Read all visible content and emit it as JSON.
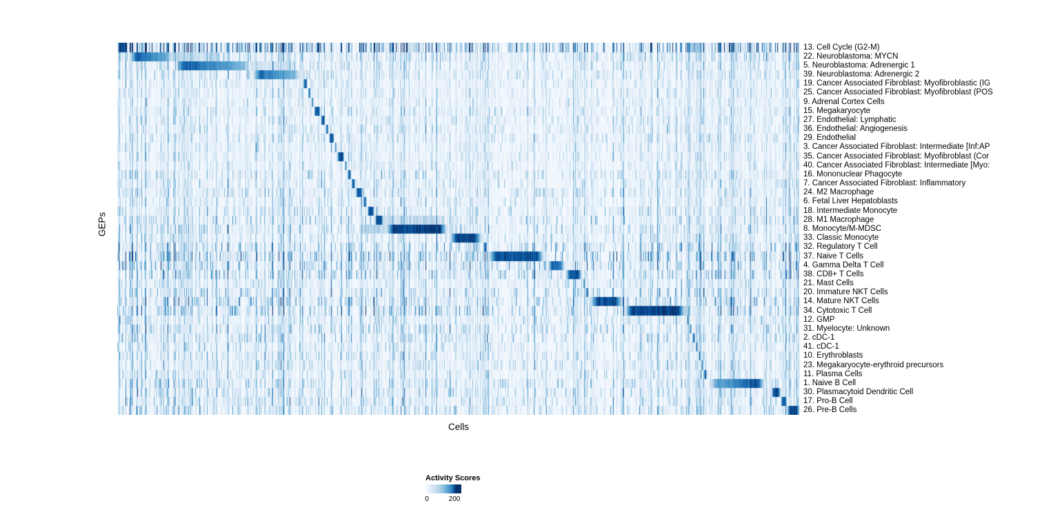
{
  "figure": {
    "background": "#ffffff"
  },
  "chart_data": {
    "type": "heatmap",
    "xlabel": "Cells",
    "ylabel": "GEPs",
    "legend": {
      "title": "Activity Scores",
      "position": "bottom",
      "ticks": [
        "0",
        "200"
      ]
    },
    "value_range": [
      0,
      250
    ],
    "n_cells": 990,
    "n_rows": 41,
    "colormap": {
      "name": "Blues",
      "stops": [
        "#f7fbff",
        "#deebf7",
        "#c6dbef",
        "#9ecae1",
        "#6baed6",
        "#4292c6",
        "#2171b5",
        "#08519c",
        "#08306b"
      ]
    },
    "rows": [
      {
        "label": "13. Cell Cycle (G2-M)",
        "block": [
          0.0,
          0.016
        ],
        "value": 240,
        "noise": 3.0
      },
      {
        "label": "22. Neuroblastoma: MYCN",
        "block": [
          0.016,
          0.085
        ],
        "value": 245,
        "noise": 1.2,
        "grad": "left",
        "extra": [
          [
            0.085,
            0.15,
            75
          ]
        ]
      },
      {
        "label": "5. Neuroblastoma: Adrenergic 1",
        "block": [
          0.085,
          0.197
        ],
        "value": 240,
        "noise": 1.0,
        "grad": "left",
        "extra": [
          [
            0.197,
            0.26,
            55
          ]
        ]
      },
      {
        "label": "39. Neuroblastoma: Adrenergic 2",
        "block": [
          0.197,
          0.272
        ],
        "value": 225,
        "noise": 1.0,
        "grad": "left"
      },
      {
        "label": "19. Cancer Associated Fibroblast: Myofibroblastic (IG",
        "block": [
          0.272,
          0.279
        ],
        "value": 215,
        "noise": 0.8
      },
      {
        "label": "25. Cancer Associated Fibroblast: Myofibroblast (POS",
        "block": [
          0.279,
          0.284
        ],
        "value": 205,
        "noise": 0.8
      },
      {
        "label": "9. Adrenal Cortex Cells",
        "block": [
          0.284,
          0.288
        ],
        "value": 200,
        "noise": 0.8
      },
      {
        "label": "15. Megakaryocyte",
        "block": [
          0.288,
          0.298
        ],
        "value": 235,
        "noise": 0.9
      },
      {
        "label": "27. Endothelial: Lymphatic",
        "block": [
          0.298,
          0.305
        ],
        "value": 225,
        "noise": 0.9
      },
      {
        "label": "36. Endothelial: Angiogenesis",
        "block": [
          0.305,
          0.31
        ],
        "value": 215,
        "noise": 0.9
      },
      {
        "label": "29. Endothelial",
        "block": [
          0.31,
          0.318
        ],
        "value": 230,
        "noise": 0.9
      },
      {
        "label": "3. Cancer Associated Fibroblast: Intermediate [Inf:AP",
        "block": [
          0.318,
          0.322
        ],
        "value": 205,
        "noise": 0.8
      },
      {
        "label": "35. Cancer Associated Fibroblast: Myofibroblast (Cor",
        "block": [
          0.322,
          0.333
        ],
        "value": 235,
        "noise": 0.8
      },
      {
        "label": "40. Cancer Associated Fibroblast: Intermediate [Myo:",
        "block": [
          0.333,
          0.337
        ],
        "value": 205,
        "noise": 0.8
      },
      {
        "label": "16. Mononuclear Phagocyte",
        "block": [
          0.337,
          0.343
        ],
        "value": 215,
        "noise": 1.0
      },
      {
        "label": "7. Cancer Associated Fibroblast: Inflammatory",
        "block": [
          0.343,
          0.349
        ],
        "value": 215,
        "noise": 0.9
      },
      {
        "label": "24. M2 Macrophage",
        "block": [
          0.349,
          0.36
        ],
        "value": 230,
        "noise": 1.0
      },
      {
        "label": "6. Fetal Liver Hepatoblasts",
        "block": [
          0.36,
          0.366
        ],
        "value": 210,
        "noise": 0.9
      },
      {
        "label": "18. Intermediate Monocyte",
        "block": [
          0.366,
          0.377
        ],
        "value": 225,
        "noise": 1.0
      },
      {
        "label": "28. M1 Macrophage",
        "block": [
          0.377,
          0.39
        ],
        "value": 230,
        "noise": 1.1,
        "extra": [
          [
            0.39,
            0.48,
            65
          ]
        ]
      },
      {
        "label": "8. Monocyte/M-MDSC",
        "block": [
          0.392,
          0.485
        ],
        "value": 250,
        "noise": 1.1,
        "extra": [
          [
            0.355,
            0.392,
            85
          ]
        ]
      },
      {
        "label": "33. Classic Monocyte",
        "block": [
          0.485,
          0.536
        ],
        "value": 245,
        "noise": 1.0
      },
      {
        "label": "32. Regulatory T Cell",
        "block": [
          0.536,
          0.542
        ],
        "value": 210,
        "noise": 1.4
      },
      {
        "label": "37. Naive T Cells",
        "block": [
          0.542,
          0.627
        ],
        "value": 235,
        "noise": 1.8
      },
      {
        "label": "4. Gamma Delta T Cell",
        "block": [
          0.63,
          0.656
        ],
        "value": 200,
        "noise": 1.5
      },
      {
        "label": "38. CD8+ T Cells",
        "block": [
          0.656,
          0.682
        ],
        "value": 230,
        "noise": 1.5
      },
      {
        "label": "21. Mast Cells",
        "block": [
          0.682,
          0.686
        ],
        "value": 215,
        "noise": 1.0
      },
      {
        "label": "20. Immature NKT Cells",
        "block": [
          0.686,
          0.691
        ],
        "value": 210,
        "noise": 1.3
      },
      {
        "label": "14. Mature NKT Cells",
        "block": [
          0.691,
          0.742
        ],
        "value": 235,
        "noise": 1.5
      },
      {
        "label": "34. Cytotoxic T Cell",
        "block": [
          0.742,
          0.834
        ],
        "value": 250,
        "noise": 1.5
      },
      {
        "label": "12. GMP",
        "block": [
          0.834,
          0.838
        ],
        "value": 210,
        "noise": 1.0
      },
      {
        "label": "31. Myelocyte: Unknown",
        "block": [
          0.838,
          0.842
        ],
        "value": 205,
        "noise": 1.2
      },
      {
        "label": "2. cDC-1",
        "block": [
          0.842,
          0.847
        ],
        "value": 215,
        "noise": 1.2
      },
      {
        "label": "41. cDC-1",
        "block": [
          0.847,
          0.851
        ],
        "value": 210,
        "noise": 1.0
      },
      {
        "label": "10. Erythroblasts",
        "block": [
          0.851,
          0.855
        ],
        "value": 215,
        "noise": 1.0
      },
      {
        "label": "23. Megakaryocyte-erythroid precursors",
        "block": [
          0.855,
          0.859
        ],
        "value": 210,
        "noise": 1.0
      },
      {
        "label": "11. Plasma Cells",
        "block": [
          0.859,
          0.864
        ],
        "value": 215,
        "noise": 1.0
      },
      {
        "label": "1. Naive B Cell",
        "block": [
          0.864,
          0.95
        ],
        "value": 250,
        "noise": 1.2,
        "grad": "right"
      },
      {
        "label": "30. Plasmacytoid Dendritic Cell",
        "block": [
          0.958,
          0.972
        ],
        "value": 240,
        "noise": 1.2
      },
      {
        "label": "17. Pro-B Cell",
        "block": [
          0.972,
          0.98
        ],
        "value": 235,
        "noise": 1.1
      },
      {
        "label": "26. Pre-B Cells",
        "block": [
          0.98,
          1.0
        ],
        "value": 250,
        "noise": 1.2
      }
    ]
  }
}
